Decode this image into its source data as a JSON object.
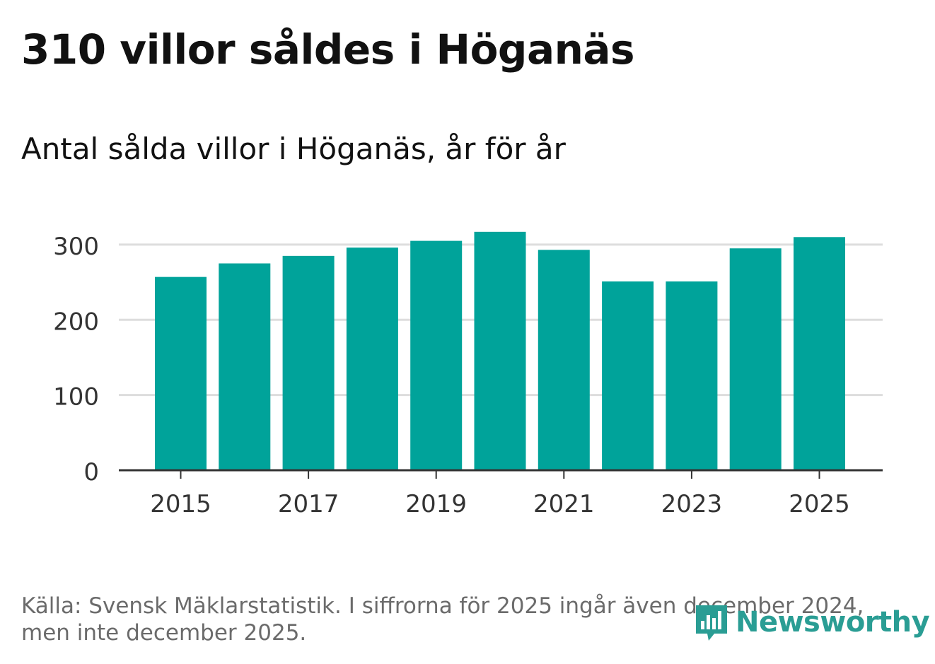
{
  "header": {
    "title": "310 villor såldes i Höganäs",
    "subtitle": "Antal sålda villor i Höganäs, år för år"
  },
  "footer": {
    "source_line1": "Källa: Svensk Mäklarstatistik. I siffrorna för 2025 ingår även december 2024,",
    "source_line2": "men inte december 2025.",
    "brand": "Newsworthy"
  },
  "colors": {
    "bar": "#00a39a",
    "grid": "#dddddd",
    "axis": "#333333",
    "brand": "#2a9d94"
  },
  "chart_data": {
    "type": "bar",
    "title": "310 villor såldes i Höganäs",
    "subtitle": "Antal sålda villor i Höganäs, år för år",
    "categories": [
      "2015",
      "2016",
      "2017",
      "2018",
      "2019",
      "2020",
      "2021",
      "2022",
      "2023",
      "2024",
      "2025"
    ],
    "values": [
      257,
      275,
      285,
      296,
      305,
      317,
      293,
      251,
      251,
      295,
      310
    ],
    "xticks": [
      "2015",
      "2017",
      "2019",
      "2021",
      "2023",
      "2025"
    ],
    "yticks": [
      0,
      100,
      200,
      300
    ],
    "ylim": [
      0,
      330
    ],
    "xlabel": "",
    "ylabel": "",
    "grid": true
  }
}
